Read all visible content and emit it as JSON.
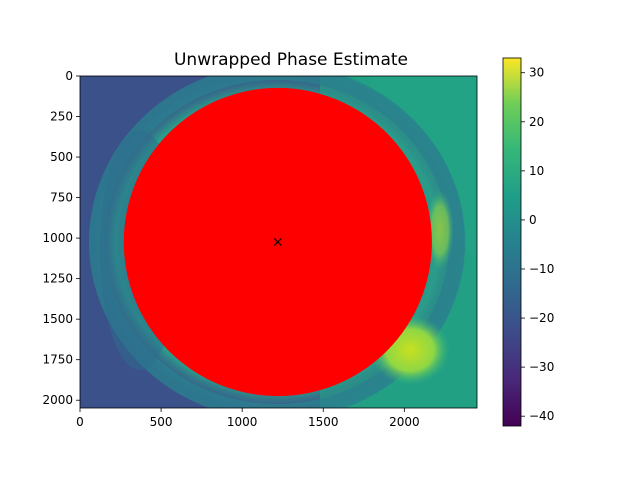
{
  "chart_data": {
    "type": "heatmap",
    "title": "Unwrapped Phase Estimate",
    "xlabel": "",
    "ylabel": "",
    "xlim": [
      0,
      2448
    ],
    "ylim": [
      2048,
      0
    ],
    "x_ticks": [
      0,
      500,
      1000,
      1500,
      2000
    ],
    "y_ticks": [
      0,
      250,
      500,
      750,
      1000,
      1250,
      1500,
      1750,
      2000
    ],
    "colormap": "viridis",
    "colorbar": {
      "range": [
        -42,
        33
      ],
      "ticks": [
        -40,
        -30,
        -20,
        -10,
        0,
        10,
        20,
        30
      ]
    },
    "overlay": {
      "shape": "filled-circle",
      "color": "#ff0000",
      "center": [
        1220,
        1024
      ],
      "radius_data": 950,
      "center_marker": "x",
      "center_marker_color": "#000000"
    },
    "regions": [
      {
        "name": "left background",
        "value": -28
      },
      {
        "name": "right background",
        "value": 2
      },
      {
        "name": "ring edge",
        "value": -15
      },
      {
        "name": "lower right bright patch",
        "value": 22
      }
    ]
  },
  "colors": {
    "overlay": "#ff0000",
    "left_bg": "#3b528b",
    "right_bg": "#21a386"
  }
}
